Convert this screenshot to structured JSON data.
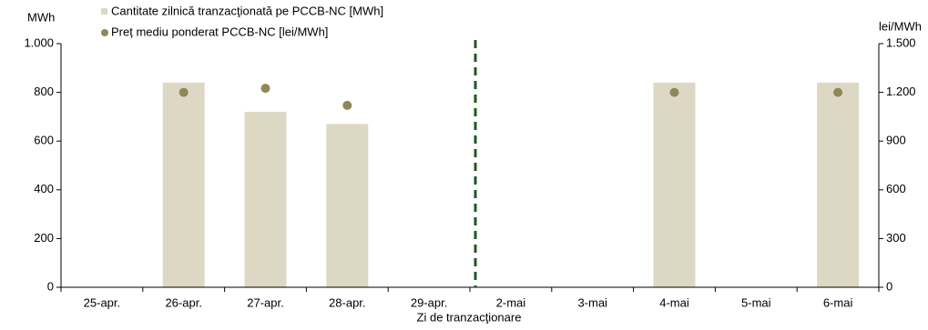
{
  "chart_data": {
    "type": "bar",
    "categories": [
      "25-apr.",
      "26-apr.",
      "27-apr.",
      "28-apr.",
      "29-apr.",
      "2-mai",
      "3-mai",
      "4-mai",
      "5-mai",
      "6-mai"
    ],
    "y_label": "MWh",
    "y2_label": "lei/MWh",
    "x_label": "Zi de tranzacţionare",
    "series": [
      {
        "name": "Cantitate zilnică tranzacţionată pe PCCB-NC [MWh]",
        "type": "bar",
        "color": "#ddd8c4",
        "values": [
          null,
          840,
          720,
          670,
          null,
          null,
          null,
          840,
          null,
          840
        ]
      },
      {
        "name": "Preț mediu ponderat PCCB-NC [lei/MWh]",
        "type": "scatter",
        "axis": "y2",
        "color": "#8f875a",
        "values": [
          null,
          1200,
          1225,
          1120,
          null,
          null,
          null,
          1200,
          null,
          1200
        ]
      }
    ],
    "ylim": [
      0,
      1000
    ],
    "yticks": [
      0,
      200,
      400,
      600,
      800,
      {
        "value": 1000,
        "label": "1.000"
      }
    ],
    "y2lim": [
      0,
      1500
    ],
    "y2ticks": [
      0,
      300,
      600,
      900,
      {
        "value": 1200,
        "label": "1.200"
      },
      {
        "value": 1500,
        "label": "1.500"
      }
    ]
  }
}
